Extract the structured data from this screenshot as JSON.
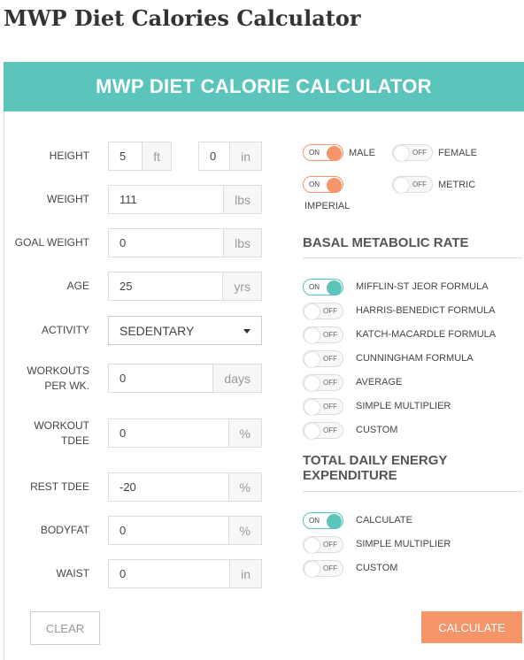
{
  "page_title": "MWP Diet Calories Calculator",
  "calculator": {
    "header": "MWP DIET CALORIE CALCULATOR",
    "fields": [
      {
        "label": "HEIGHT",
        "inputs": [
          {
            "value": "5",
            "unit": "ft"
          },
          {
            "value": "0",
            "unit": "in"
          }
        ]
      },
      {
        "label": "WEIGHT",
        "inputs": [
          {
            "value": "111",
            "unit": "lbs"
          }
        ]
      },
      {
        "label": "GOAL WEIGHT",
        "inputs": [
          {
            "value": "0",
            "unit": "lbs"
          }
        ]
      },
      {
        "label": "AGE",
        "inputs": [
          {
            "value": "25",
            "unit": "yrs"
          }
        ]
      },
      {
        "label": "ACTIVITY",
        "select": "SEDENTARY"
      },
      {
        "label": "WORKOUTS\nPER WK.",
        "inputs": [
          {
            "value": "0",
            "unit": "days"
          }
        ]
      },
      {
        "label": "WORKOUT\nTDEE",
        "inputs": [
          {
            "value": "0",
            "unit": "%"
          }
        ]
      },
      {
        "label": "REST TDEE",
        "inputs": [
          {
            "value": "-20",
            "unit": "%"
          }
        ]
      },
      {
        "label": "BODYFAT",
        "inputs": [
          {
            "value": "0",
            "unit": "%"
          }
        ]
      },
      {
        "label": "WAIST",
        "inputs": [
          {
            "value": "0",
            "unit": "in"
          }
        ]
      }
    ],
    "settings": [
      {
        "state": "ON",
        "label": "MALE"
      },
      {
        "state": "OFF",
        "label": "FEMALE"
      },
      {
        "state": "ON",
        "label": "IMPERIAL"
      },
      {
        "state": "OFF",
        "label": "METRIC"
      }
    ],
    "bmr": {
      "title": "BASAL METABOLIC RATE",
      "options": [
        {
          "state": "ON",
          "label": "MIFFLIN-ST JEOR FORMULA"
        },
        {
          "state": "OFF",
          "label": "HARRIS-BENEDICT FORMULA"
        },
        {
          "state": "OFF",
          "label": "KATCH-MACARDLE FORMULA"
        },
        {
          "state": "OFF",
          "label": "CUNNINGHAM FORMULA"
        },
        {
          "state": "OFF",
          "label": "AVERAGE"
        },
        {
          "state": "OFF",
          "label": "SIMPLE MULTIPLIER"
        },
        {
          "state": "OFF",
          "label": "CUSTOM"
        }
      ]
    },
    "tdee": {
      "title": "TOTAL DAILY ENERGY\nEXPENDITURE",
      "options": [
        {
          "state": "ON",
          "label": "CALCULATE"
        },
        {
          "state": "OFF",
          "label": "SIMPLE MULTIPLIER"
        },
        {
          "state": "OFF",
          "label": "CUSTOM"
        }
      ]
    },
    "buttons": {
      "clear": "CLEAR",
      "calculate": "CALCULATE"
    }
  }
}
